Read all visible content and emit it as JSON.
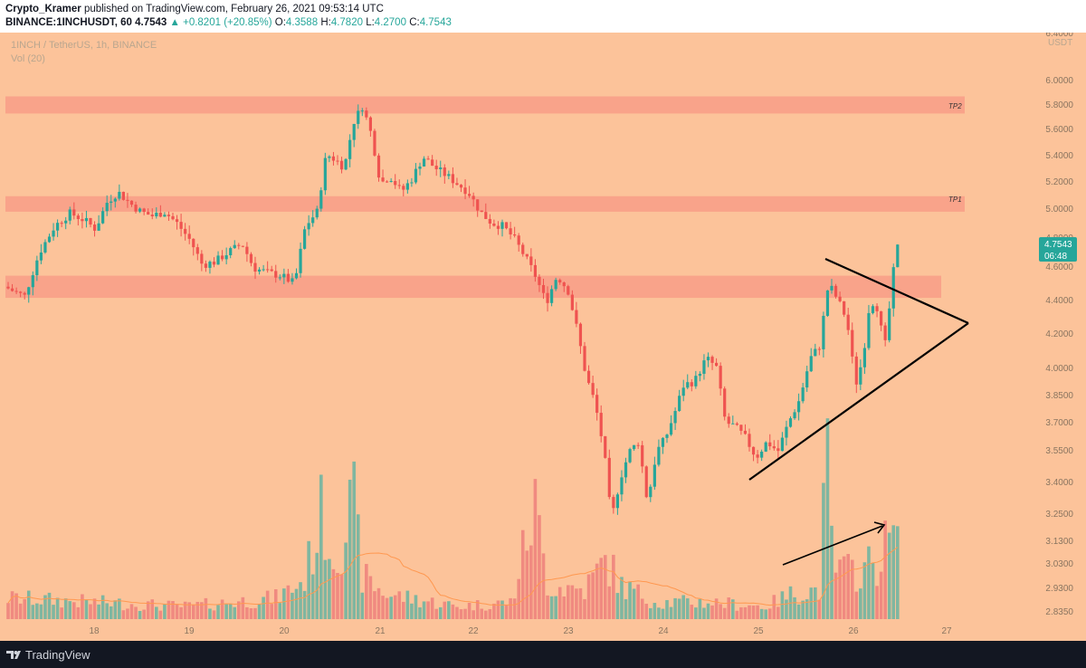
{
  "header": {
    "publisher": "Crypto_Kramer",
    "published_text": "published on TradingView.com, February 26, 2021 09:53:14 UTC",
    "symbol": "BINANCE:1INCHUSDT, 60",
    "last_price": "4.7543",
    "change": "▲ +0.8201 (+20.85%)",
    "open_label": "O:",
    "open": "4.3588",
    "high_label": "H:",
    "high": "4.7820",
    "low_label": "L:",
    "low": "4.2700",
    "close_label": "C:",
    "close": "4.7543"
  },
  "legend": {
    "title": "1INCH / TetherUS, 1h, BINANCE",
    "volume": "Vol (20)"
  },
  "price_badge": {
    "price": "4.7543",
    "countdown": "06:48"
  },
  "currency_label": "USDT",
  "zone_labels": {
    "tp2": "TP2",
    "tp1": "TP1"
  },
  "footer": {
    "brand": "TradingView"
  },
  "colors": {
    "background": "#fcc39a",
    "zone": "#f9a38a",
    "up": "#26a69a",
    "down": "#ef5350",
    "vol_up": "#7fb6a0",
    "vol_down": "#f08a80",
    "vol_ma": "#ff9850",
    "trendline": "#000000"
  },
  "chart_data": {
    "type": "candlestick",
    "scale": "log",
    "ylim": [
      2.8,
      6.5
    ],
    "y_ticks": [
      "6.4000",
      "6.0000",
      "5.8000",
      "5.6000",
      "5.4000",
      "5.2000",
      "5.0000",
      "4.8000",
      "4.6000",
      "4.4000",
      "4.2000",
      "4.0000",
      "3.8500",
      "3.7000",
      "3.5500",
      "3.4000",
      "3.2500",
      "3.1300",
      "3.0300",
      "2.9300",
      "2.8350"
    ],
    "x_ticks": [
      "18",
      "19",
      "20",
      "21",
      "22",
      "23",
      "24",
      "25",
      "26",
      "27"
    ],
    "last_price": 4.7543,
    "zones": [
      {
        "label": "TP2",
        "from": 5.72,
        "to": 5.86
      },
      {
        "label": "TP1",
        "from": 4.98,
        "to": 5.09
      },
      {
        "label": "",
        "from": 4.41,
        "to": 4.55
      }
    ],
    "price_path": [
      [
        0,
        4.48
      ],
      [
        10,
        4.45
      ],
      [
        22,
        4.42
      ],
      [
        38,
        4.7
      ],
      [
        55,
        4.88
      ],
      [
        72,
        4.97
      ],
      [
        88,
        4.92
      ],
      [
        100,
        4.86
      ],
      [
        113,
        5.05
      ],
      [
        125,
        5.12
      ],
      [
        138,
        5.04
      ],
      [
        150,
        4.98
      ],
      [
        163,
        4.95
      ],
      [
        176,
        4.98
      ],
      [
        190,
        4.9
      ],
      [
        205,
        4.78
      ],
      [
        218,
        4.62
      ],
      [
        232,
        4.64
      ],
      [
        246,
        4.7
      ],
      [
        262,
        4.76
      ],
      [
        275,
        4.6
      ],
      [
        290,
        4.57
      ],
      [
        305,
        4.55
      ],
      [
        320,
        4.5
      ],
      [
        332,
        4.88
      ],
      [
        345,
        4.98
      ],
      [
        355,
        5.4
      ],
      [
        365,
        5.36
      ],
      [
        375,
        5.3
      ],
      [
        385,
        5.65
      ],
      [
        395,
        5.78
      ],
      [
        405,
        5.55
      ],
      [
        415,
        5.18
      ],
      [
        425,
        5.24
      ],
      [
        438,
        5.12
      ],
      [
        450,
        5.22
      ],
      [
        462,
        5.38
      ],
      [
        475,
        5.3
      ],
      [
        488,
        5.24
      ],
      [
        500,
        5.18
      ],
      [
        512,
        5.12
      ],
      [
        525,
        4.98
      ],
      [
        538,
        4.9
      ],
      [
        550,
        4.88
      ],
      [
        562,
        4.8
      ],
      [
        574,
        4.68
      ],
      [
        586,
        4.55
      ],
      [
        598,
        4.38
      ],
      [
        610,
        4.55
      ],
      [
        622,
        4.46
      ],
      [
        632,
        4.22
      ],
      [
        642,
        3.95
      ],
      [
        652,
        3.8
      ],
      [
        662,
        3.55
      ],
      [
        670,
        3.22
      ],
      [
        680,
        3.42
      ],
      [
        690,
        3.55
      ],
      [
        700,
        3.6
      ],
      [
        710,
        3.3
      ],
      [
        720,
        3.55
      ],
      [
        730,
        3.62
      ],
      [
        740,
        3.75
      ],
      [
        750,
        3.9
      ],
      [
        762,
        3.92
      ],
      [
        775,
        4.05
      ],
      [
        786,
        4.0
      ],
      [
        796,
        3.7
      ],
      [
        806,
        3.68
      ],
      [
        818,
        3.62
      ],
      [
        830,
        3.52
      ],
      [
        842,
        3.6
      ],
      [
        854,
        3.55
      ],
      [
        866,
        3.7
      ],
      [
        878,
        3.82
      ],
      [
        890,
        4.05
      ],
      [
        900,
        4.12
      ],
      [
        910,
        4.5
      ],
      [
        920,
        4.4
      ],
      [
        930,
        4.28
      ],
      [
        940,
        3.9
      ],
      [
        948,
        4.05
      ],
      [
        956,
        4.4
      ],
      [
        964,
        4.35
      ],
      [
        972,
        4.1
      ],
      [
        978,
        4.38
      ],
      [
        985,
        4.75
      ]
    ],
    "volume_path": [
      [
        0,
        0.05
      ],
      [
        100,
        0.04
      ],
      [
        200,
        0.03
      ],
      [
        300,
        0.05
      ],
      [
        330,
        0.09
      ],
      [
        352,
        0.26
      ],
      [
        360,
        0.15
      ],
      [
        370,
        0.18
      ],
      [
        385,
        0.27
      ],
      [
        395,
        0.1
      ],
      [
        420,
        0.06
      ],
      [
        500,
        0.03
      ],
      [
        560,
        0.04
      ],
      [
        585,
        0.27
      ],
      [
        600,
        0.08
      ],
      [
        640,
        0.07
      ],
      [
        665,
        0.14
      ],
      [
        680,
        0.08
      ],
      [
        720,
        0.04
      ],
      [
        780,
        0.04
      ],
      [
        840,
        0.03
      ],
      [
        870,
        0.06
      ],
      [
        900,
        0.07
      ],
      [
        908,
        0.38
      ],
      [
        915,
        0.12
      ],
      [
        930,
        0.11
      ],
      [
        950,
        0.12
      ],
      [
        965,
        0.14
      ],
      [
        975,
        0.18
      ],
      [
        985,
        0.22
      ]
    ]
  }
}
